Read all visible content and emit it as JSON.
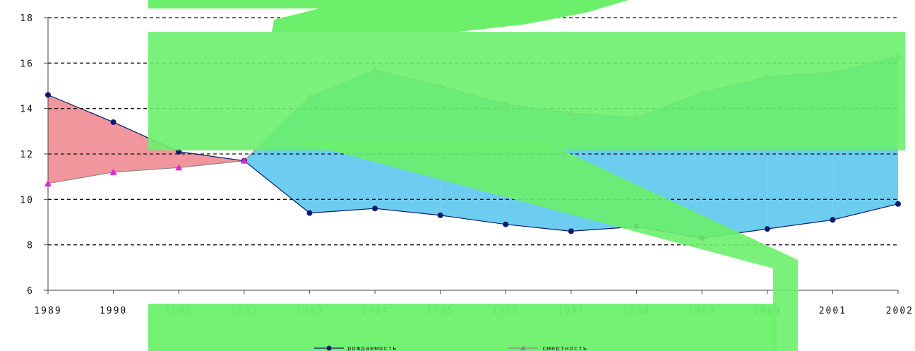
{
  "chart_data": {
    "type": "line",
    "x": [
      "1989",
      "1990",
      "1991",
      "1992",
      "1993",
      "1994",
      "1995",
      "1996",
      "1997",
      "1998",
      "1999",
      "2000",
      "2001",
      "2002"
    ],
    "series": [
      {
        "name": "рождаемость",
        "values": [
          14.6,
          13.4,
          12.1,
          11.7,
          9.4,
          9.6,
          9.3,
          8.9,
          8.6,
          8.8,
          8.3,
          8.7,
          9.1,
          9.8
        ],
        "color": "#0a1a6e"
      },
      {
        "name": "смертность",
        "values": [
          10.7,
          11.2,
          11.4,
          11.7,
          14.5,
          15.7,
          15.0,
          14.2,
          13.8,
          13.6,
          14.7,
          15.4,
          15.6,
          16.3
        ],
        "color": "#8a8a8a"
      }
    ],
    "ylim": [
      6,
      18
    ],
    "yticks": [
      "6",
      "8",
      "10",
      "12",
      "14",
      "16",
      "18"
    ],
    "grid": "horizontal-dashed",
    "legend": "bottom",
    "fill_colors": {
      "births_above": "#f0969c",
      "deaths_above": "#6ccdf0",
      "deaths_marker": "#e020e0"
    },
    "overlay_color": "#6cf06c"
  }
}
